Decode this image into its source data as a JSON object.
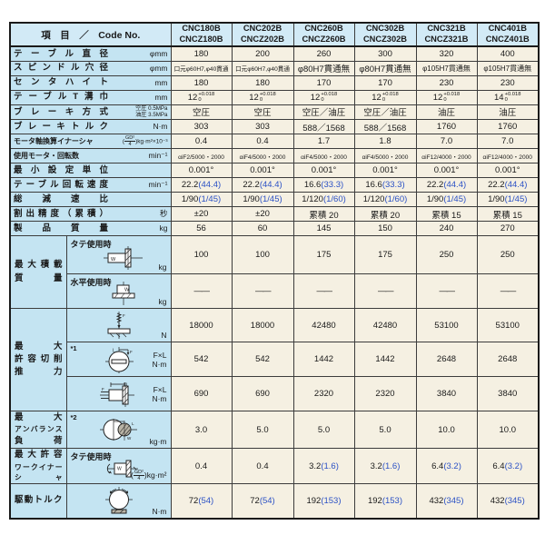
{
  "colors": {
    "header_bg": "#d2eaf6",
    "label_bg": "#c4e4f2",
    "cell_bg": "#f5f0e2",
    "border": "#1a1a1a",
    "paren_blue": "#2b51c5"
  },
  "table": {
    "corner_label": "項　目　／　Code No.",
    "columns": [
      {
        "line1": "CNC180B",
        "line2": "CNCZ180B"
      },
      {
        "line1": "CNC202B",
        "line2": "CNCZ202B"
      },
      {
        "line1": "CNC260B",
        "line2": "CNCZ260B"
      },
      {
        "line1": "CNC302B",
        "line2": "CNCZ302B"
      },
      {
        "line1": "CNC321B",
        "line2": "CNCZ321B"
      },
      {
        "line1": "CNC401B",
        "line2": "CNCZ401B"
      }
    ],
    "simple_rows": [
      {
        "label": "テーブル直径",
        "unit": "φmm",
        "values": [
          "180",
          "200",
          "260",
          "300",
          "320",
          "400"
        ]
      },
      {
        "label": "スピンドル穴径",
        "unit": "φmm",
        "values": [
          "口元φ60H7,φ40貫通",
          "口元φ60H7,φ40貫通",
          "φ80H7貫通無",
          "φ80H7貫通無",
          "φ105H7貫通無",
          "φ105H7貫通無"
        ]
      },
      {
        "label": "センタハイト",
        "unit": "mm",
        "values": [
          "180",
          "180",
          "170",
          "170",
          "230",
          "230"
        ]
      },
      {
        "label": "テーブルT溝巾",
        "unit": "mm",
        "format": "tolerance",
        "values": [
          [
            "12",
            "+0.018",
            "0"
          ],
          [
            "12",
            "+0.018",
            "0"
          ],
          [
            "12",
            "+0.018",
            "0"
          ],
          [
            "12",
            "+0.018",
            "0"
          ],
          [
            "12",
            "+0.018",
            "0"
          ],
          [
            "14",
            "+0.018",
            "0"
          ]
        ]
      },
      {
        "label": "ブレーキ方式",
        "unit_lines": [
          "空圧 0.5MPa",
          "油圧 3.5MPa"
        ],
        "values": [
          "空圧",
          "空圧",
          "空圧／油圧",
          "空圧／油圧",
          "油圧",
          "油圧"
        ]
      },
      {
        "label": "ブレーキトルク",
        "unit": "N·m",
        "values": [
          "303",
          "303",
          "588／1568",
          "588／1568",
          "1760",
          "1760"
        ]
      },
      {
        "label": "モータ軸換算イナーシャ",
        "unit": "(GD²/4)kg·m²×10⁻³",
        "values": [
          "0.4",
          "0.4",
          "1.7",
          "1.8",
          "7.0",
          "7.0"
        ]
      },
      {
        "label": "使用モータ・回転数",
        "unit": "min⁻¹",
        "values": [
          "αiF2/5000・2000",
          "αiF4/5000・2000",
          "αiF4/5000・2000",
          "αiF4/5000・2000",
          "αiF12/4000・2000",
          "αiF12/4000・2000"
        ]
      },
      {
        "label": "最小設定単位",
        "unit": "",
        "values": [
          "0.001°",
          "0.001°",
          "0.001°",
          "0.001°",
          "0.001°",
          "0.001°"
        ]
      },
      {
        "label": "テーブル回転速度",
        "unit": "min⁻¹",
        "format": "paren",
        "values": [
          "22.2(44.4)",
          "22.2(44.4)",
          "16.6(33.3)",
          "16.6(33.3)",
          "22.2(44.4)",
          "22.2(44.4)"
        ]
      },
      {
        "label": "総減速比",
        "unit": "",
        "format": "paren",
        "values": [
          "1/90(1/45)",
          "1/90(1/45)",
          "1/120(1/60)",
          "1/120(1/60)",
          "1/90(1/45)",
          "1/90(1/45)"
        ]
      },
      {
        "label": "割出精度（累積）",
        "unit": "秒",
        "values": [
          "±20",
          "±20",
          "累積 20",
          "累積 20",
          "累積 15",
          "累積 15"
        ]
      },
      {
        "label": "製品質量",
        "unit": "kg",
        "values": [
          "56",
          "60",
          "145",
          "150",
          "240",
          "270"
        ]
      }
    ],
    "groups": [
      {
        "label_lines": [
          "最大積載",
          "質量"
        ],
        "rows": [
          {
            "sublabel": "タテ使用時",
            "icon": "vertical-mount-icon",
            "unit": "kg",
            "values": [
              "100",
              "100",
              "175",
              "175",
              "250",
              "250"
            ]
          },
          {
            "sublabel": "水平使用時",
            "icon": "horizontal-mount-icon",
            "unit": "kg",
            "values": [
              "——",
              "——",
              "——",
              "——",
              "——",
              "——"
            ]
          }
        ]
      },
      {
        "label_lines": [
          "最大",
          "許容切削",
          "推力"
        ],
        "rows": [
          {
            "icon": "drill-thrust-icon",
            "unit": "N",
            "values": [
              "18000",
              "18000",
              "42480",
              "42480",
              "53100",
              "53100"
            ]
          },
          {
            "star": "*1",
            "icon": "face-load-icon",
            "unit_lines": [
              "F×L",
              "N·m"
            ],
            "values": [
              "542",
              "542",
              "1442",
              "1442",
              "2648",
              "2648"
            ]
          },
          {
            "icon": "side-load-icon",
            "unit_lines": [
              "F×L",
              "N·m"
            ],
            "values": [
              "690",
              "690",
              "2320",
              "2320",
              "3840",
              "3840"
            ]
          }
        ]
      },
      {
        "label_lines": [
          "最大",
          "アンバランス",
          "負荷"
        ],
        "rows": [
          {
            "star": "*2",
            "icon": "unbalance-icon",
            "unit": "kg·m",
            "values": [
              "3.0",
              "5.0",
              "5.0",
              "5.0",
              "10.0",
              "10.0"
            ]
          }
        ]
      },
      {
        "label_lines": [
          "最大許容",
          "ワークイナーシャ"
        ],
        "rows": [
          {
            "sublabel": "タテ使用時",
            "icon": "work-inertia-icon",
            "unit": "(GD²/4)kg·m²",
            "format": "paren",
            "values": [
              "0.4",
              "0.4",
              "3.2(1.6)",
              "3.2(1.6)",
              "6.4(3.2)",
              "6.4(3.2)"
            ]
          }
        ]
      },
      {
        "label_lines": [
          "駆動トルク"
        ],
        "rows": [
          {
            "icon": "drive-torque-icon",
            "unit": "N·m",
            "format": "paren",
            "values": [
              "72(54)",
              "72(54)",
              "192(153)",
              "192(153)",
              "432(345)",
              "432(345)"
            ]
          }
        ]
      }
    ]
  }
}
